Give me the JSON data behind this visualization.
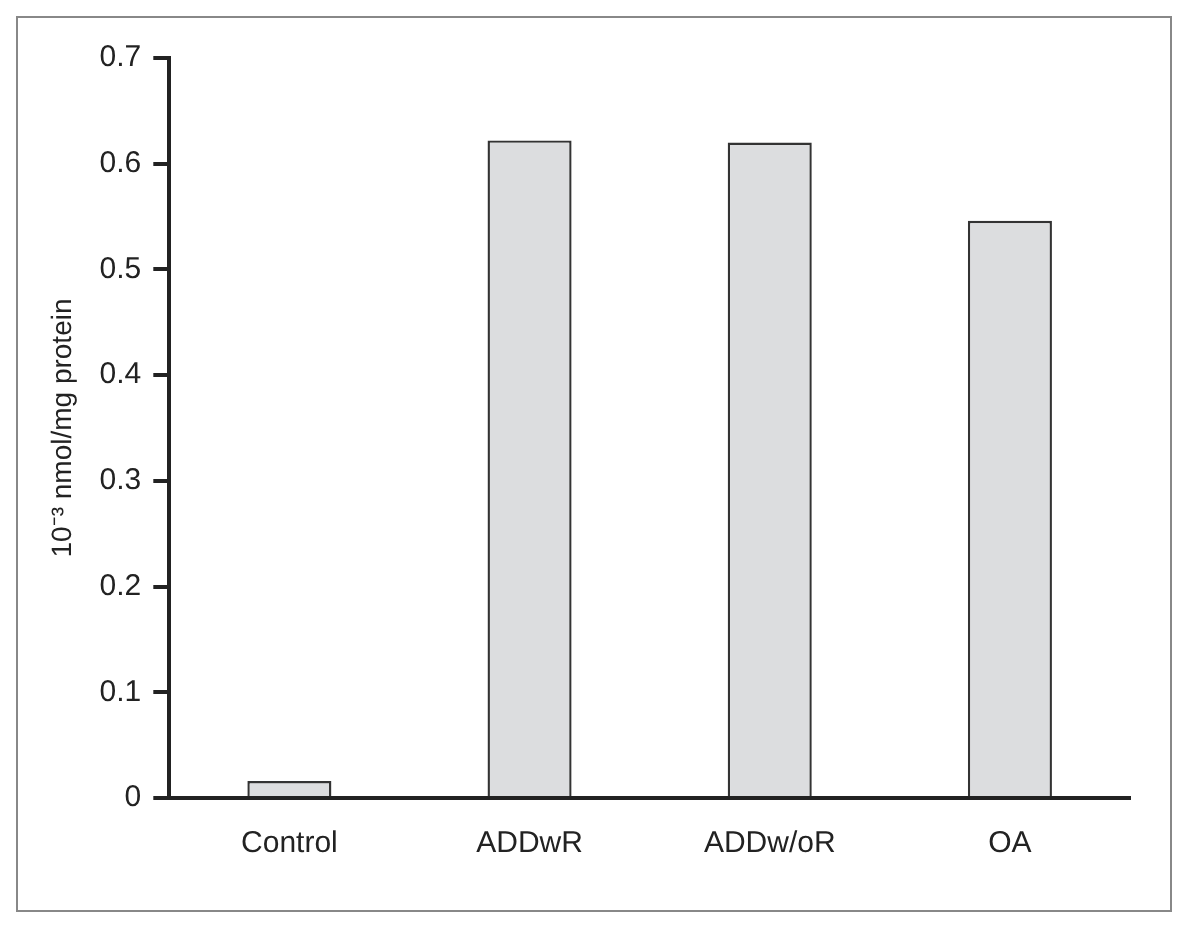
{
  "chart_data": {
    "type": "bar",
    "ylabel": "10⁻³ nmol/mg protein",
    "categories": [
      "Control",
      "ADDwR",
      "ADDw/oR",
      "OA"
    ],
    "values": [
      0.016,
      0.622,
      0.62,
      0.546
    ],
    "color": "#dcdddf",
    "ylim": [
      0,
      0.7
    ],
    "yticks": [
      0,
      0.1,
      0.2,
      0.3,
      0.4,
      0.5,
      0.6,
      0.7
    ],
    "grid": false,
    "legend": false
  }
}
